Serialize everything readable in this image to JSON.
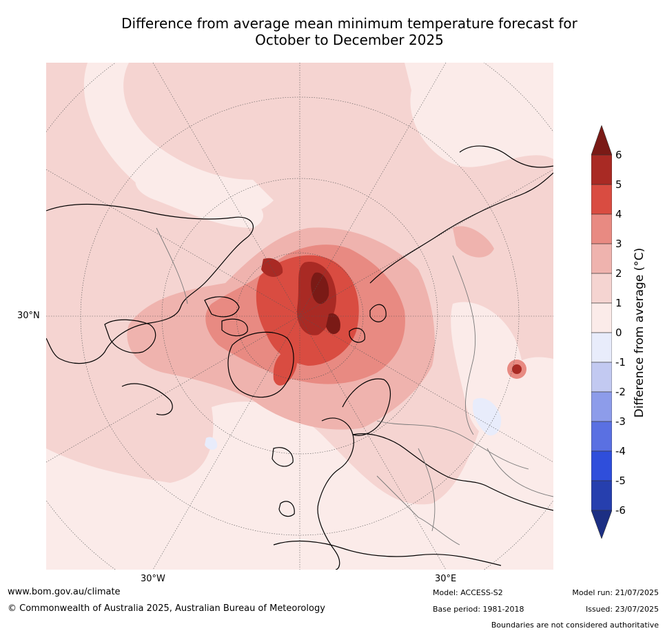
{
  "title_line1": "Difference from average mean minimum temperature forecast for",
  "title_line2": "October to December 2025",
  "map": {
    "lat_label": "30°N",
    "lon_labels": [
      "30°W",
      "30°E"
    ]
  },
  "colorbar": {
    "label": "Difference from average (°C)",
    "ticks": [
      "6",
      "5",
      "4",
      "3",
      "2",
      "1",
      "0",
      "-1",
      "-2",
      "-3",
      "-4",
      "-5",
      "-6"
    ],
    "colors": [
      "#7a1a16",
      "#a92a24",
      "#d94c41",
      "#e88a82",
      "#efb3ae",
      "#f5d4d1",
      "#fbebe9",
      "#e8ecfb",
      "#c2c9f1",
      "#8d9cea",
      "#5a70e2",
      "#2f4edb",
      "#263fae",
      "#1c2f83"
    ]
  },
  "footer": {
    "website": "www.bom.gov.au/climate",
    "copyright": "© Commonwealth of Australia 2025, Australian Bureau of Meteorology",
    "model": "Model: ACCESS-S2",
    "base_period": "Base period: 1981-2018",
    "model_run": "Model run: 21/07/2025",
    "issued": "Issued: 23/07/2025",
    "disclaimer": "Boundaries are not considered authoritative"
  }
}
